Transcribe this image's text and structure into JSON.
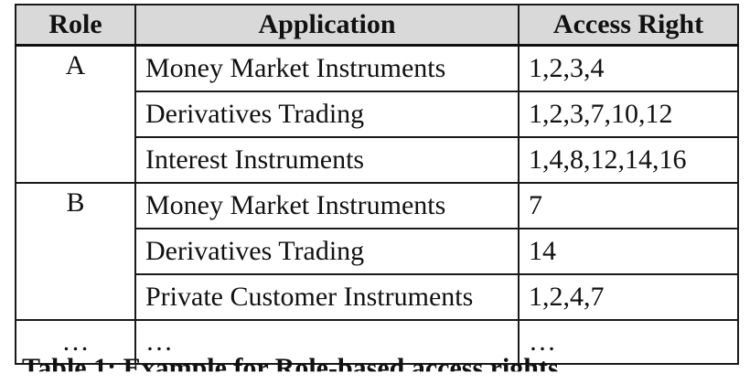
{
  "table": {
    "headers": [
      "Role",
      "Application",
      "Access Right"
    ],
    "groups": [
      {
        "role": "A",
        "rows": [
          {
            "application": "Money Market Instruments",
            "access": "1,2,3,4"
          },
          {
            "application": "Derivatives Trading",
            "access": "1,2,3,7,10,12"
          },
          {
            "application": "Interest Instruments",
            "access": "1,4,8,12,14,16"
          }
        ]
      },
      {
        "role": "B",
        "rows": [
          {
            "application": "Money Market Instruments",
            "access": "7"
          },
          {
            "application": "Derivatives Trading",
            "access": "14"
          },
          {
            "application": "Private Customer Instruments",
            "access": "1,2,4,7"
          }
        ]
      }
    ],
    "last_row": {
      "role": "…",
      "application": "…",
      "access": "…"
    }
  },
  "caption": "Table 1: Example for Role-based access rights"
}
